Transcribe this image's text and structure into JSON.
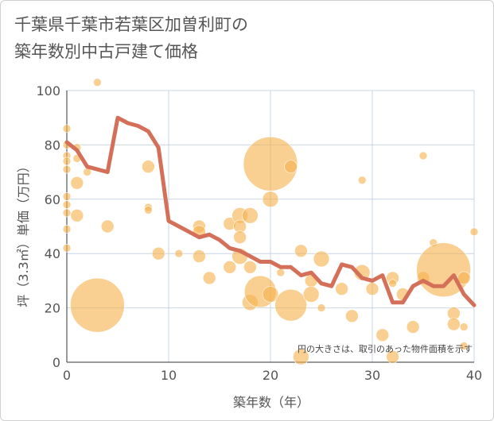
{
  "chart_data": {
    "type": "scatter",
    "title_lines": [
      "千葉県千葉市若葉区加曽利町の",
      "築年数別中古戸建て価格"
    ],
    "xlabel": "築年数（年）",
    "ylabel": "坪（3.3㎡）単価（万円）",
    "xlim": [
      0,
      40
    ],
    "ylim": [
      0,
      100
    ],
    "xticks": [
      "0",
      "10",
      "20",
      "30",
      "40"
    ],
    "yticks": [
      "0",
      "20",
      "40",
      "60",
      "80",
      "100"
    ],
    "grid": true,
    "note": "円の大きさは、取引のあった物件面積を示す",
    "colors": {
      "bubble": "#f5b24f",
      "line": "#d4705a",
      "grid": "#c8d6e3"
    },
    "bubbles": [
      {
        "x": 0,
        "y": 86,
        "s": 1
      },
      {
        "x": 0,
        "y": 80,
        "s": 1
      },
      {
        "x": 0,
        "y": 76,
        "s": 1
      },
      {
        "x": 0,
        "y": 74,
        "s": 1
      },
      {
        "x": 0,
        "y": 71,
        "s": 1
      },
      {
        "x": 0,
        "y": 61,
        "s": 1
      },
      {
        "x": 0,
        "y": 58,
        "s": 1
      },
      {
        "x": 0,
        "y": 55,
        "s": 1
      },
      {
        "x": 0,
        "y": 49,
        "s": 1
      },
      {
        "x": 0,
        "y": 42,
        "s": 1
      },
      {
        "x": 1,
        "y": 79,
        "s": 1
      },
      {
        "x": 1,
        "y": 75,
        "s": 1
      },
      {
        "x": 1,
        "y": 66,
        "s": 2
      },
      {
        "x": 1,
        "y": 54,
        "s": 2
      },
      {
        "x": 2,
        "y": 70,
        "s": 1
      },
      {
        "x": 3,
        "y": 103,
        "s": 1
      },
      {
        "x": 3,
        "y": 21,
        "s": 5
      },
      {
        "x": 4,
        "y": 50,
        "s": 2
      },
      {
        "x": 8,
        "y": 72,
        "s": 2
      },
      {
        "x": 8,
        "y": 57,
        "s": 1
      },
      {
        "x": 8,
        "y": 56,
        "s": 1
      },
      {
        "x": 9,
        "y": 40,
        "s": 2
      },
      {
        "x": 11,
        "y": 40,
        "s": 1
      },
      {
        "x": 13,
        "y": 50,
        "s": 2
      },
      {
        "x": 13,
        "y": 48,
        "s": 2
      },
      {
        "x": 13,
        "y": 39,
        "s": 2
      },
      {
        "x": 14,
        "y": 31,
        "s": 2
      },
      {
        "x": 16,
        "y": 51,
        "s": 2
      },
      {
        "x": 16,
        "y": 35,
        "s": 2
      },
      {
        "x": 17,
        "y": 54,
        "s": 3
      },
      {
        "x": 17,
        "y": 50,
        "s": 2
      },
      {
        "x": 17,
        "y": 46,
        "s": 2
      },
      {
        "x": 17,
        "y": 39,
        "s": 3
      },
      {
        "x": 18,
        "y": 54,
        "s": 3
      },
      {
        "x": 18,
        "y": 35,
        "s": 2
      },
      {
        "x": 18,
        "y": 22,
        "s": 3
      },
      {
        "x": 19,
        "y": 26,
        "s": 4
      },
      {
        "x": 20,
        "y": 73,
        "s": 5
      },
      {
        "x": 20,
        "y": 60,
        "s": 3
      },
      {
        "x": 20,
        "y": 25,
        "s": 3
      },
      {
        "x": 21,
        "y": 33,
        "s": 1
      },
      {
        "x": 22,
        "y": 72,
        "s": 2
      },
      {
        "x": 22,
        "y": 21,
        "s": 4
      },
      {
        "x": 23,
        "y": 41,
        "s": 2
      },
      {
        "x": 23,
        "y": 2,
        "s": 3
      },
      {
        "x": 24,
        "y": 30,
        "s": 2
      },
      {
        "x": 24,
        "y": 25,
        "s": 3
      },
      {
        "x": 25,
        "y": 38,
        "s": 3
      },
      {
        "x": 25,
        "y": 20,
        "s": 1
      },
      {
        "x": 27,
        "y": 27,
        "s": 2
      },
      {
        "x": 28,
        "y": 17,
        "s": 2
      },
      {
        "x": 29,
        "y": 67,
        "s": 1
      },
      {
        "x": 29,
        "y": 33,
        "s": 3
      },
      {
        "x": 30,
        "y": 27,
        "s": 2
      },
      {
        "x": 31,
        "y": 10,
        "s": 2
      },
      {
        "x": 32,
        "y": 31,
        "s": 2
      },
      {
        "x": 32,
        "y": 29,
        "s": 1
      },
      {
        "x": 32,
        "y": 2,
        "s": 2
      },
      {
        "x": 33,
        "y": 25,
        "s": 2
      },
      {
        "x": 34,
        "y": 13,
        "s": 2
      },
      {
        "x": 35,
        "y": 76,
        "s": 1
      },
      {
        "x": 35,
        "y": 31,
        "s": 2
      },
      {
        "x": 36,
        "y": 44,
        "s": 1
      },
      {
        "x": 37,
        "y": 34,
        "s": 5
      },
      {
        "x": 38,
        "y": 18,
        "s": 2
      },
      {
        "x": 38,
        "y": 14,
        "s": 2
      },
      {
        "x": 39,
        "y": 31,
        "s": 2
      },
      {
        "x": 39,
        "y": 13,
        "s": 1
      },
      {
        "x": 39,
        "y": 6,
        "s": 1
      },
      {
        "x": 40,
        "y": 48,
        "s": 1
      }
    ],
    "series": [
      {
        "x": [
          0,
          1,
          2,
          3,
          4,
          5,
          6,
          7,
          8,
          9,
          10,
          11,
          12,
          13,
          14,
          15,
          16,
          17,
          18,
          19,
          20,
          21,
          22,
          23,
          24,
          25,
          26,
          27,
          28,
          29,
          30,
          31,
          32,
          33,
          34,
          35,
          36,
          37,
          38,
          39,
          40
        ],
        "y": [
          81,
          78,
          72,
          71,
          70,
          90,
          88,
          87,
          85,
          79,
          52,
          50,
          48,
          46,
          47,
          45,
          42,
          41,
          39,
          37,
          37,
          35,
          35,
          32,
          33,
          29,
          28,
          36,
          35,
          31,
          30,
          32,
          22,
          22,
          28,
          30,
          28,
          28,
          32,
          25,
          21
        ]
      }
    ]
  }
}
